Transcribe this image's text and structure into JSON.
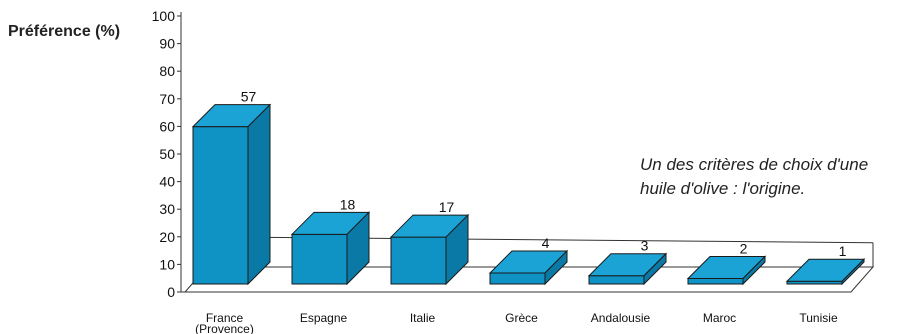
{
  "chart_data": {
    "type": "bar",
    "ylabel": "Préférence (%)",
    "xlabel": "",
    "ylim": [
      0,
      100
    ],
    "yticks": [
      0,
      10,
      20,
      30,
      40,
      50,
      60,
      70,
      80,
      90,
      100
    ],
    "categories": [
      "France\n(Provence)",
      "Espagne",
      "Italie",
      "Grèce",
      "Andalousie",
      "Maroc",
      "Tunisie"
    ],
    "values": [
      57,
      18,
      17,
      4,
      3,
      2,
      1
    ],
    "data_labels": [
      "57",
      "18",
      "17",
      "4",
      "3",
      "2",
      "1"
    ],
    "annotation": [
      "Un des critères de choix d'une",
      "huile d'olive : l'origine."
    ],
    "style": "3d-bars",
    "colors": {
      "bar_front": "#0f93c4",
      "bar_top": "#1aa3d4",
      "bar_side": "#0b79a6",
      "edge": "#1a1a1a"
    },
    "grid": false
  }
}
